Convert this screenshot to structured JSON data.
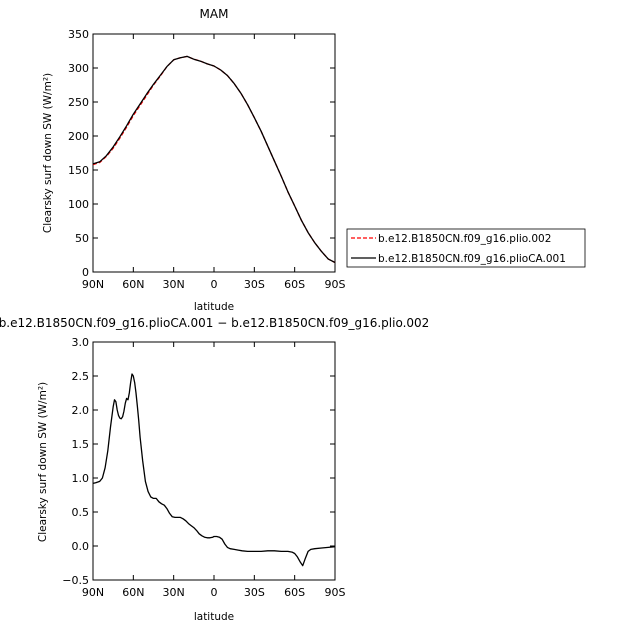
{
  "chart_data": [
    {
      "type": "line",
      "title": "MAM",
      "xlabel": "latitude",
      "ylabel": "Clearsky surf down SW (W/m²)",
      "xlim": [
        90,
        -90
      ],
      "ylim": [
        0,
        350
      ],
      "x_tick_values": [
        90,
        60,
        30,
        0,
        -30,
        -60,
        -90
      ],
      "x_tick_labels": [
        "90N",
        "60N",
        "30N",
        "0",
        "30S",
        "60S",
        "90S"
      ],
      "y_tick_values": [
        0,
        50,
        100,
        150,
        200,
        250,
        300,
        350
      ],
      "y_tick_labels": [
        "0",
        "50",
        "100",
        "150",
        "200",
        "250",
        "300",
        "350"
      ],
      "grid": false,
      "legend_position": "right",
      "series": [
        {
          "name": "b.e12.B1850CN.f09_g16.plio.002",
          "color": "#ff0000",
          "dash": "dashed",
          "x": [
            90,
            85,
            80,
            75,
            70,
            65,
            60,
            55,
            50,
            45,
            40,
            35,
            30,
            25,
            20,
            15,
            10,
            5,
            0,
            -5,
            -10,
            -15,
            -20,
            -25,
            -30,
            -35,
            -40,
            -45,
            -50,
            -55,
            -60,
            -65,
            -70,
            -75,
            -80,
            -85,
            -90
          ],
          "values": [
            158,
            161,
            170,
            182,
            197,
            213,
            230,
            245,
            260,
            275,
            288,
            302,
            312,
            315,
            317,
            313,
            310,
            306,
            303,
            297,
            289,
            277,
            263,
            246,
            227,
            207,
            185,
            163,
            141,
            118,
            97,
            76,
            58,
            43,
            30,
            19,
            14
          ]
        },
        {
          "name": "b.e12.B1850CN.f09_g16.plioCA.001",
          "color": "#000000",
          "dash": "solid",
          "x": [
            90,
            85,
            80,
            75,
            70,
            65,
            60,
            55,
            50,
            45,
            40,
            35,
            30,
            25,
            20,
            15,
            10,
            5,
            0,
            -5,
            -10,
            -15,
            -20,
            -25,
            -30,
            -35,
            -40,
            -45,
            -50,
            -55,
            -60,
            -65,
            -70,
            -75,
            -80,
            -85,
            -90
          ],
          "values": [
            159,
            162,
            171,
            184,
            199,
            215,
            232,
            247,
            262,
            276,
            289,
            302,
            312,
            315,
            317,
            313,
            310,
            306,
            303,
            297,
            289,
            277,
            263,
            246,
            227,
            207,
            185,
            163,
            141,
            118,
            97,
            76,
            58,
            43,
            30,
            19,
            14
          ]
        }
      ]
    },
    {
      "type": "line",
      "title": "b.e12.B1850CN.f09_g16.plioCA.001 − b.e12.B1850CN.f09_g16.plio.002",
      "xlabel": "latitude",
      "ylabel": "Clearsky surf down SW (W/m²)",
      "xlim": [
        90,
        -90
      ],
      "ylim": [
        -0.5,
        3.0
      ],
      "x_tick_values": [
        90,
        60,
        30,
        0,
        -30,
        -60,
        -90
      ],
      "x_tick_labels": [
        "90N",
        "60N",
        "30N",
        "0",
        "30S",
        "60S",
        "90S"
      ],
      "y_tick_values": [
        -0.5,
        0,
        0.5,
        1.0,
        1.5,
        2.0,
        2.5,
        3.0
      ],
      "y_tick_labels": [
        "−0.5",
        "0.0",
        "0.5",
        "1.0",
        "1.5",
        "2.0",
        "2.5",
        "3.0"
      ],
      "grid": false,
      "series": [
        {
          "color": "#000000",
          "dash": "solid",
          "x": [
            90,
            88,
            85,
            83,
            81,
            79,
            77,
            75,
            74,
            73,
            72,
            71,
            70,
            69,
            68,
            67,
            66,
            65,
            64,
            63,
            62,
            61,
            60,
            59,
            58,
            57,
            56,
            55,
            53,
            51,
            49,
            47,
            45,
            43,
            41,
            39,
            37,
            35,
            33,
            31,
            29,
            27,
            25,
            23,
            21,
            19,
            17,
            15,
            13,
            11,
            9,
            7,
            5,
            3,
            1,
            0,
            -2,
            -4,
            -6,
            -8,
            -10,
            -12,
            -15,
            -18,
            -21,
            -25,
            -30,
            -35,
            -40,
            -45,
            -50,
            -55,
            -58,
            -60,
            -62,
            -64,
            -66,
            -68,
            -70,
            -72,
            -75,
            -80,
            -85,
            -90
          ],
          "values": [
            0.92,
            0.93,
            0.95,
            1.0,
            1.15,
            1.4,
            1.75,
            2.05,
            2.15,
            2.12,
            2.0,
            1.92,
            1.88,
            1.87,
            1.9,
            1.98,
            2.1,
            2.17,
            2.15,
            2.25,
            2.4,
            2.53,
            2.5,
            2.4,
            2.25,
            2.05,
            1.85,
            1.6,
            1.25,
            0.95,
            0.8,
            0.72,
            0.7,
            0.7,
            0.65,
            0.62,
            0.6,
            0.55,
            0.48,
            0.43,
            0.42,
            0.42,
            0.42,
            0.4,
            0.37,
            0.33,
            0.3,
            0.27,
            0.23,
            0.18,
            0.15,
            0.13,
            0.12,
            0.12,
            0.13,
            0.14,
            0.14,
            0.13,
            0.1,
            0.03,
            -0.02,
            -0.04,
            -0.05,
            -0.06,
            -0.07,
            -0.08,
            -0.08,
            -0.08,
            -0.07,
            -0.07,
            -0.08,
            -0.08,
            -0.09,
            -0.11,
            -0.16,
            -0.23,
            -0.29,
            -0.18,
            -0.08,
            -0.05,
            -0.04,
            -0.03,
            -0.02,
            -0.01
          ]
        }
      ]
    }
  ]
}
